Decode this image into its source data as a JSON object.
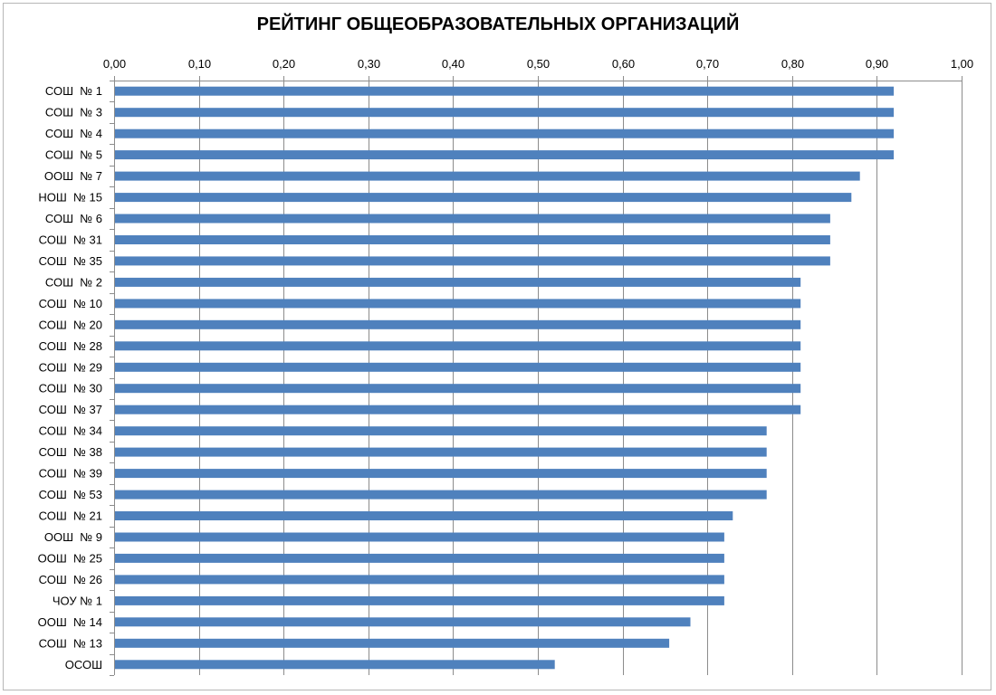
{
  "chart_data": {
    "type": "bar",
    "orientation": "horizontal",
    "title": "РЕЙТИНГ ОБЩЕОБРАЗОВАТЕЛЬНЫХ ОРГАНИЗАЦИЙ",
    "xlabel": "",
    "ylabel": "",
    "xlim": [
      0,
      1
    ],
    "x_ticks": [
      "0,00",
      "0,10",
      "0,20",
      "0,30",
      "0,40",
      "0,50",
      "0,60",
      "0,70",
      "0,80",
      "0,90",
      "1,00"
    ],
    "x_axis_position": "top",
    "grid": true,
    "legend": "none",
    "bar_color": "#4f81bd",
    "categories": [
      "СОШ  № 1",
      "СОШ  № 3",
      "СОШ  № 4",
      "СОШ  № 5",
      "ООШ  № 7",
      "НОШ  № 15",
      "СОШ  № 6",
      "СОШ  № 31",
      "СОШ  № 35",
      "СОШ  № 2",
      "СОШ  № 10",
      "СОШ  № 20",
      "СОШ  № 28",
      "СОШ  № 29",
      "СОШ  № 30",
      "СОШ  № 37",
      "СОШ  № 34",
      "СОШ  № 38",
      "СОШ  № 39",
      "СОШ  № 53",
      "СОШ  № 21",
      "ООШ  № 9",
      "ООШ  № 25",
      "СОШ  № 26",
      "ЧОУ № 1",
      "ООШ  № 14",
      "СОШ  № 13",
      "ОСОШ"
    ],
    "values": [
      0.92,
      0.92,
      0.92,
      0.92,
      0.88,
      0.87,
      0.845,
      0.845,
      0.845,
      0.81,
      0.81,
      0.81,
      0.81,
      0.81,
      0.81,
      0.81,
      0.77,
      0.77,
      0.77,
      0.77,
      0.73,
      0.72,
      0.72,
      0.72,
      0.72,
      0.68,
      0.655,
      0.52
    ]
  }
}
